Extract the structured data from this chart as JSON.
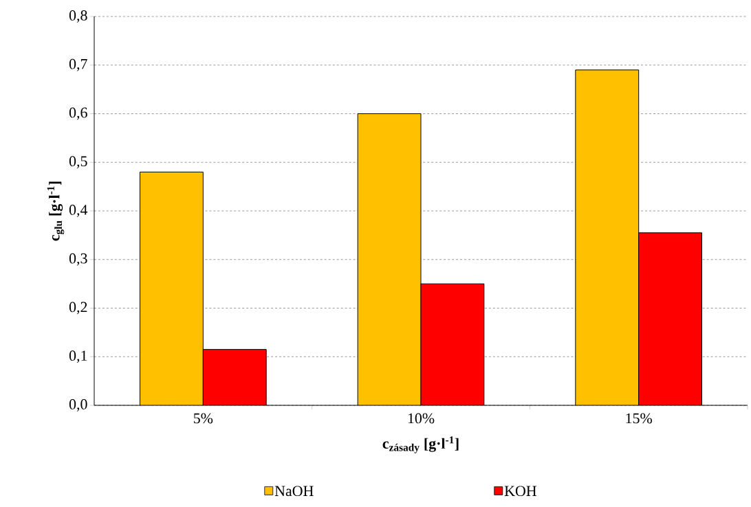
{
  "chart_data": {
    "type": "bar",
    "xlabel": "c$_{zásady}$ [g·l$^{-1}$]",
    "ylabel": "c$_{glu}$ [g·l$^{-1}$]",
    "categories": [
      "5%",
      "10%",
      "15%"
    ],
    "series": [
      {
        "name": "NaOH",
        "color": "#ffc000",
        "values": [
          0.48,
          0.6,
          0.69
        ]
      },
      {
        "name": "KOH",
        "color": "#ff0000",
        "values": [
          0.115,
          0.25,
          0.355
        ]
      }
    ],
    "ylim": [
      0,
      0.8
    ],
    "yticks": [
      {
        "value": 0,
        "label": "0,0"
      },
      {
        "value": 0.1,
        "label": "0,1"
      },
      {
        "value": 0.2,
        "label": "0,2"
      },
      {
        "value": 0.3,
        "label": "0,3"
      },
      {
        "value": 0.4,
        "label": "0,4"
      },
      {
        "value": 0.5,
        "label": "0,5"
      },
      {
        "value": 0.6,
        "label": "0,6"
      },
      {
        "value": 0.7,
        "label": "0,7"
      },
      {
        "value": 0.8,
        "label": "0,8"
      }
    ],
    "grid": "y",
    "legend": "bottom"
  }
}
